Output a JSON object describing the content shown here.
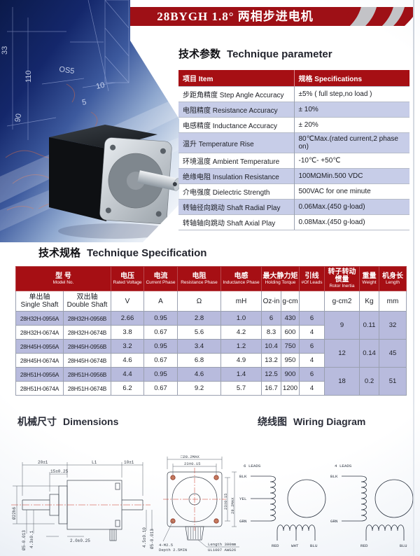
{
  "banner": {
    "title": "28BYGH 1.8°  两相步进电机"
  },
  "sections": {
    "parameter": {
      "zh": "技术参数",
      "en": "Technique parameter"
    },
    "specification": {
      "zh": "技术规格",
      "en": "Technique Specification"
    },
    "dimensions": {
      "zh": "机械尺寸",
      "en": "Dimensions"
    },
    "wiring": {
      "zh": "绕线图",
      "en": "Wiring Diagram"
    }
  },
  "colors": {
    "banner_red": "#9e1016",
    "table_header_red": "#a60f14",
    "param_row_blue": "#c7cde8",
    "spec_row_purple": "#b8bbdd",
    "drawing_red": "#cc3425"
  },
  "photo": {
    "labels": [
      "33",
      "110",
      "90",
      "OS5",
      "10",
      "5"
    ]
  },
  "parameter_table": {
    "header": {
      "item": "项目  Item",
      "spec": "规格  Specifications"
    },
    "rows": [
      [
        "步距角精度 Step Angle Accuracy",
        "±5% ( full step,no load )"
      ],
      [
        "电阻精度 Resistance Accuracy",
        "± 10%"
      ],
      [
        "电感精度 Inductance Accuracy",
        "± 20%"
      ],
      [
        "温升 Temperature Rise",
        "80℃Max.(rated current,2 phase on)"
      ],
      [
        "环境温度 Ambient Temperature",
        "-10℃- +50℃"
      ],
      [
        "绝缘电阻 Insulation Resistance",
        "100MΩMin.500 VDC"
      ],
      [
        "介电强度 Dielectric Strength",
        "500VAC for one minute"
      ],
      [
        "转轴径向跳动 Shaft Radial Play",
        "0.06Max.(450 g-load)"
      ],
      [
        "转轴轴向跳动 Shaft Axial Play",
        "0.08Max.(450 g-load)"
      ]
    ]
  },
  "spec_table": {
    "col_headers": [
      {
        "zh": "型  号",
        "en": "Model No."
      },
      {
        "zh": "电压",
        "en": "Rated Voltage"
      },
      {
        "zh": "电流",
        "en": "Current Phase"
      },
      {
        "zh": "电阻",
        "en": "Resistance Phase"
      },
      {
        "zh": "电感",
        "en": "Inductance Phase"
      },
      {
        "zh": "最大静力矩",
        "en": "Holding Torque"
      },
      {
        "zh": "引线",
        "en": "#Of Leads"
      },
      {
        "zh": "转子转动惯量",
        "en": "Rotor Inertia"
      },
      {
        "zh": "重量",
        "en": "Weight"
      },
      {
        "zh": "机身长",
        "en": "Length"
      }
    ],
    "unit_row": [
      {
        "zh": "单出轴",
        "en": "Single Shaft"
      },
      {
        "zh": "双出轴",
        "en": "Double Shaft"
      },
      "V",
      "A",
      "Ω",
      "mH",
      "Oz-in",
      "g-cm",
      "",
      "g-cm2",
      "Kg",
      "mm"
    ],
    "groups": [
      {
        "rows": [
          [
            "28H32H-0956A",
            "28H32H-0956B",
            "2.66",
            "0.95",
            "2.8",
            "1.0",
            "6",
            "430",
            "6"
          ],
          [
            "28H32H-0674A",
            "28H32H-0674B",
            "3.8",
            "0.67",
            "5.6",
            "4.2",
            "8.3",
            "600",
            "4"
          ]
        ],
        "inertia": "9",
        "weight": "0.11",
        "length": "32"
      },
      {
        "rows": [
          [
            "28H45H-0956A",
            "28H45H-0956B",
            "3.2",
            "0.95",
            "3.4",
            "1.2",
            "10.4",
            "750",
            "6"
          ],
          [
            "28H45H-0674A",
            "28H45H-0674B",
            "4.6",
            "0.67",
            "6.8",
            "4.9",
            "13.2",
            "950",
            "4"
          ]
        ],
        "inertia": "12",
        "weight": "0.14",
        "length": "45"
      },
      {
        "rows": [
          [
            "28H51H-0956A",
            "28H51H-0956B",
            "4.4",
            "0.95",
            "4.6",
            "1.4",
            "12.5",
            "900",
            "6"
          ],
          [
            "28H51H-0674A",
            "28H51H-0674B",
            "6.2",
            "0.67",
            "9.2",
            "5.7",
            "16.7",
            "1200",
            "4"
          ]
        ],
        "inertia": "18",
        "weight": "0.2",
        "length": "51"
      }
    ]
  },
  "side_view": {
    "dims_top": [
      "20±1",
      "L1",
      "10±1"
    ],
    "dim_front": "15±0.25",
    "dim_plate": "2.0±0.25",
    "dim_left": [
      "Ø22h6",
      "Ø5-0.013",
      "4.3±0.1"
    ],
    "dim_right": [
      "4.5±0.10",
      "Ø5-0.013"
    ]
  },
  "front_view": {
    "dim_square": "□28.2MAX",
    "dim_holes_h": "23±0.15",
    "dim_holes_v": "23±0.15",
    "dim_square_v": "28.2MAX",
    "screw_note_1": "4-M2.5",
    "screw_note_2": "Depth 2.5MIN",
    "wire_note_1": "Length 300mm",
    "wire_note_2": "UL1007 AWG26"
  },
  "wiring_6": {
    "title": "6 LEADS",
    "lead_1": "BLK",
    "lead_2": "YEL",
    "lead_3": "GRN",
    "lead_4": "RED",
    "lead_5": "WHT",
    "lead_6": "BLU"
  },
  "wiring_4": {
    "title": "4 LEADS",
    "lead_1": "BLK",
    "lead_2": "GRN",
    "lead_3": "RED",
    "lead_4": "BLU"
  }
}
